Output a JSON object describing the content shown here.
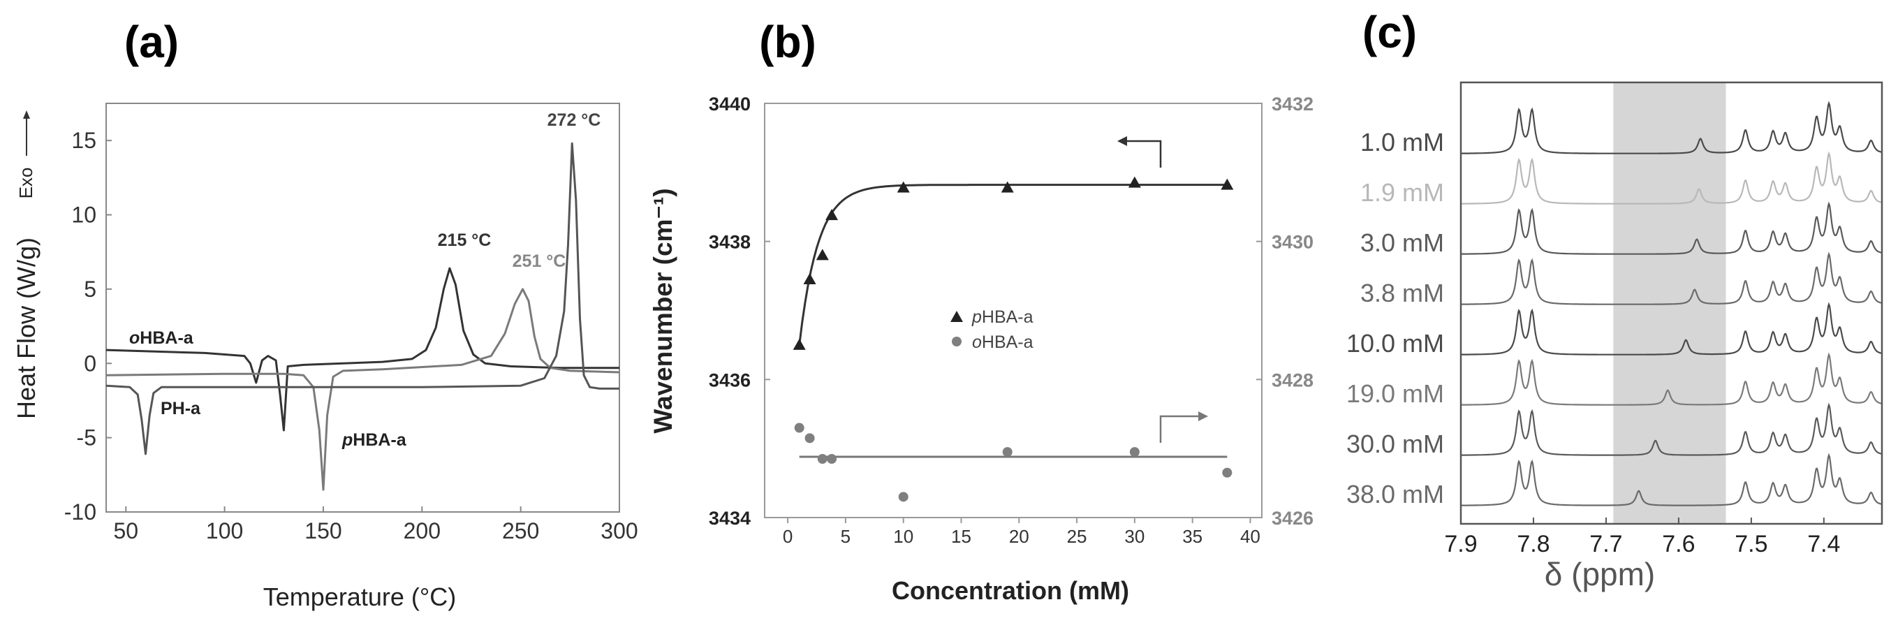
{
  "chart_data": [
    {
      "panel": "(a)",
      "type": "line",
      "xlabel": "Temperature (°C)",
      "ylabel": "Heat Flow (W/g)",
      "exo_label": "Exo",
      "xlim": [
        40,
        300
      ],
      "ylim": [
        -10,
        17.5
      ],
      "xticks": [
        50,
        100,
        150,
        200,
        250,
        300
      ],
      "yticks": [
        -10,
        -5,
        0,
        5,
        10,
        15
      ],
      "colors": {
        "oHBA": "#333333",
        "pHBA": "#7a7a7a",
        "PH": "#555555"
      },
      "series": [
        {
          "name": "oHBA-a",
          "label_prefix": "o",
          "label_suffix": "HBA-a",
          "x": [
            40,
            90,
            110,
            113,
            116,
            119,
            122,
            126,
            128,
            130,
            132,
            140,
            160,
            180,
            195,
            202,
            207,
            211,
            214,
            217,
            221,
            226,
            232,
            245,
            270,
            300
          ],
          "y": [
            0.9,
            0.7,
            0.5,
            0.0,
            -1.3,
            0.2,
            0.5,
            0.2,
            -2.0,
            -4.5,
            -0.2,
            -0.1,
            0.0,
            0.1,
            0.3,
            0.9,
            2.4,
            5.0,
            6.4,
            5.3,
            2.2,
            0.6,
            0.0,
            -0.2,
            -0.3,
            -0.3
          ]
        },
        {
          "name": "pHBA-a",
          "label_prefix": "p",
          "label_suffix": "HBA-a",
          "x": [
            40,
            100,
            130,
            140,
            145,
            148,
            150,
            152,
            155,
            160,
            180,
            220,
            235,
            242,
            247,
            251,
            254,
            257,
            260,
            265,
            275,
            300
          ],
          "y": [
            -0.8,
            -0.7,
            -0.7,
            -0.8,
            -1.6,
            -4.5,
            -8.5,
            -3.5,
            -0.9,
            -0.5,
            -0.4,
            -0.1,
            0.5,
            2.0,
            4.0,
            5.0,
            4.2,
            1.8,
            0.3,
            -0.3,
            -0.5,
            -0.6
          ]
        },
        {
          "name": "PH-a",
          "label_prefix": "",
          "label_suffix": "PH-a",
          "x": [
            40,
            52,
            56,
            58,
            60,
            62,
            64,
            68,
            90,
            200,
            250,
            262,
            268,
            272,
            274,
            276,
            278,
            280,
            282,
            285,
            290,
            300
          ],
          "y": [
            -1.5,
            -1.6,
            -2.1,
            -3.8,
            -6.1,
            -3.5,
            -2.0,
            -1.6,
            -1.6,
            -1.6,
            -1.5,
            -1.0,
            0.5,
            3.5,
            8.0,
            14.8,
            11.0,
            3.0,
            -0.8,
            -1.6,
            -1.7,
            -1.7
          ]
        }
      ],
      "annotations": [
        "215 °C",
        "251 °C",
        "272 °C"
      ]
    },
    {
      "panel": "(b)",
      "type": "scatter",
      "xlabel": "Concentration (mM)",
      "ylabel": "Wavenumber (cm⁻¹)",
      "xlim": [
        -2,
        41
      ],
      "ylim_left": [
        3434,
        3440
      ],
      "ylim_right": [
        3426,
        3432
      ],
      "xticks": [
        0,
        5,
        10,
        15,
        20,
        25,
        30,
        35,
        40
      ],
      "yticks_left": [
        3434,
        3436,
        3438,
        3440
      ],
      "yticks_right": [
        3426,
        3428,
        3430,
        3432
      ],
      "series": [
        {
          "name": "pHBA-a",
          "label_prefix": "p",
          "label_suffix": "HBA-a",
          "marker": "triangle",
          "axis": "left",
          "color": "#222222",
          "x": [
            1.0,
            1.9,
            3.0,
            3.8,
            10.0,
            19.0,
            30.0,
            38.0
          ],
          "y": [
            3436.5,
            3437.45,
            3437.8,
            3438.38,
            3438.78,
            3438.78,
            3438.85,
            3438.82
          ]
        },
        {
          "name": "oHBA-a",
          "label_prefix": "o",
          "label_suffix": "HBA-a",
          "marker": "circle",
          "axis": "right",
          "color": "#7f7f7f",
          "x": [
            1.0,
            1.9,
            3.0,
            3.8,
            10.0,
            19.0,
            30.0,
            38.0
          ],
          "y": [
            3427.3,
            3427.15,
            3426.85,
            3426.85,
            3426.3,
            3426.95,
            3426.95,
            3426.65
          ]
        }
      ],
      "fits": [
        {
          "series": "pHBA-a",
          "model": "exponential",
          "x_from": 1.0,
          "x_to": 38.0
        },
        {
          "series": "oHBA-a",
          "model": "constant",
          "value": 3426.88,
          "x_from": 1.0,
          "x_to": 38.0
        }
      ]
    },
    {
      "panel": "(c)",
      "type": "line",
      "xlabel": "δ (ppm)",
      "xlim": [
        7.9,
        7.32
      ],
      "xticks": [
        7.9,
        7.8,
        7.7,
        7.6,
        7.5,
        7.4
      ],
      "tick_labels": [
        "7.9",
        "7.8",
        "7.7",
        "7.6",
        "7.5",
        "7.4"
      ],
      "highlight_range": [
        7.69,
        7.535
      ],
      "traces": [
        {
          "label": "1.0 mM",
          "conc": 1.0,
          "shift": 7.57,
          "color": "#4a4a4a"
        },
        {
          "label": "1.9 mM",
          "conc": 1.9,
          "shift": 7.572,
          "color": "#b8b8b8"
        },
        {
          "label": "3.0 mM",
          "conc": 3.0,
          "shift": 7.575,
          "color": "#5a5a5a"
        },
        {
          "label": "3.8 mM",
          "conc": 3.8,
          "shift": 7.578,
          "color": "#6a6a6a"
        },
        {
          "label": "10.0 mM",
          "conc": 10.0,
          "shift": 7.59,
          "color": "#4a4a4a"
        },
        {
          "label": "19.0 mM",
          "conc": 19.0,
          "shift": 7.615,
          "color": "#7a7a7a"
        },
        {
          "label": "30.0 mM",
          "conc": 30.0,
          "shift": 7.632,
          "color": "#5a5a5a"
        },
        {
          "label": "38.0 mM",
          "conc": 38.0,
          "shift": 7.655,
          "color": "#6a6a6a"
        }
      ],
      "fixed_peaks": [
        {
          "ppm": 7.82,
          "h": 1.0
        },
        {
          "ppm": 7.802,
          "h": 1.0
        },
        {
          "ppm": 7.508,
          "h": 0.55
        },
        {
          "ppm": 7.47,
          "h": 0.5
        },
        {
          "ppm": 7.453,
          "h": 0.45
        },
        {
          "ppm": 7.41,
          "h": 0.8
        },
        {
          "ppm": 7.393,
          "h": 1.1
        },
        {
          "ppm": 7.378,
          "h": 0.55
        },
        {
          "ppm": 7.335,
          "h": 0.3
        }
      ]
    }
  ]
}
